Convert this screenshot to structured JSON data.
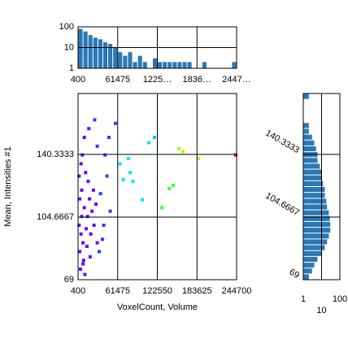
{
  "chart_data": [
    {
      "type": "histogram",
      "orientation": "vertical",
      "log_y": true,
      "color": "#2b78b4",
      "grid": true,
      "bins": [
        400,
        8034.375,
        15668.75,
        23303.125,
        30937.5,
        38571.875,
        46206.25,
        53840.625,
        61475,
        69109.375,
        76743.75,
        84378.125,
        92012.5,
        99646.875,
        107281.25,
        114915.625,
        122550,
        130184.375,
        137818.75,
        145453.125,
        153087.5,
        160721.875,
        168356.25,
        175990.625,
        183625,
        191259.375,
        198893.75,
        206528.125,
        214162.5,
        221796.875,
        229431.25,
        237065.625,
        244700
      ],
      "values": [
        80,
        60,
        40,
        30,
        25,
        18,
        15,
        10,
        6,
        4,
        6,
        2,
        4,
        2,
        1,
        3,
        2,
        2,
        2,
        2,
        2,
        2,
        2,
        0,
        0,
        2,
        0,
        0,
        0,
        0,
        0,
        2
      ],
      "xlim": [
        400,
        244700
      ],
      "xticks": [
        400,
        61475,
        {
          "value": 122550,
          "label": "1225…"
        },
        {
          "value": 183625,
          "label": "1836…"
        },
        {
          "value": 244700,
          "label": "2447…"
        }
      ],
      "ylim": [
        1,
        100
      ],
      "yticks": [
        1,
        10,
        100
      ]
    },
    {
      "type": "scatter",
      "xlabel": "VoxelCount, Volume",
      "ylabel": "Mean, Intensities #1",
      "grid": true,
      "x": [
        2000,
        5000,
        8000,
        3000,
        10000,
        15000,
        6000,
        12000,
        4000,
        9000,
        20000,
        18000,
        7000,
        25000,
        14000,
        11000,
        16000,
        22000,
        3000,
        13000,
        28000,
        10000,
        17000,
        5000,
        30000,
        8000,
        2000,
        19000,
        24000,
        6000,
        35000,
        40000,
        45000,
        38000,
        50000,
        42000,
        33000,
        48000,
        30000,
        26000,
        58000,
        80600,
        99400,
        70000,
        65000,
        78000,
        85000,
        109400,
        118150,
        140700,
        147000,
        129400,
        155750,
        162000,
        185800,
        243400
      ],
      "y": [
        100,
        95,
        90,
        85,
        110,
        105,
        120,
        130,
        75,
        80,
        95,
        115,
        140,
        100,
        88,
        72,
        125,
        108,
        115,
        98,
        112,
        150,
        155,
        135,
        90,
        78,
        128,
        82,
        120,
        105,
        118,
        100,
        128,
        92,
        108,
        140,
        85,
        150,
        145,
        160,
        158,
        130,
        114.5,
        126,
        135,
        138,
        125,
        147,
        150,
        120.9,
        122.7,
        110,
        143.6,
        142,
        138,
        140
      ],
      "colors": [
        "#6a00ff",
        "#6a00ff",
        "#6a00ff",
        "#6a00ff",
        "#6a00ff",
        "#6a00ff",
        "#6a00ff",
        "#6a00ff",
        "#6a00ff",
        "#6a00ff",
        "#6a00ff",
        "#6a00ff",
        "#6a00ff",
        "#6a00ff",
        "#6a00ff",
        "#6a00ff",
        "#6a00ff",
        "#6a00ff",
        "#6a00ff",
        "#6a00ff",
        "#6a00ff",
        "#6a00ff",
        "#6a00ff",
        "#6a00ff",
        "#6a00ff",
        "#6a00ff",
        "#6a00ff",
        "#6a00ff",
        "#6a00ff",
        "#6a00ff",
        "#2a3cff",
        "#2a3cff",
        "#2a3cff",
        "#2a3cff",
        "#2a3cff",
        "#2a3cff",
        "#2a3cff",
        "#2a3cff",
        "#2a3cff",
        "#2a3cff",
        "#2a3cff",
        "#00e8ff",
        "#00e8ff",
        "#00e8ff",
        "#00e8ff",
        "#00e8ff",
        "#00e8ff",
        "#00e8ff",
        "#00d0c0",
        "#40ff40",
        "#40ff40",
        "#40ff40",
        "#a0ff00",
        "#a0ff00",
        "#ffe000",
        "#ff0000"
      ],
      "xlim": [
        400,
        244700
      ],
      "xticks": [
        400,
        61475,
        122550,
        183625,
        244700
      ],
      "ylim": [
        69,
        175
      ],
      "yticks": [
        69,
        104.6667,
        140.3333
      ]
    },
    {
      "type": "histogram",
      "orientation": "horizontal",
      "log_x": true,
      "color": "#2b78b4",
      "grid": true,
      "bins": [
        69,
        72.3125,
        75.625,
        78.9375,
        82.25,
        85.5625,
        88.875,
        92.1875,
        95.5,
        98.8125,
        102.125,
        105.4375,
        108.75,
        112.0625,
        115.375,
        118.6875,
        122,
        125.3125,
        128.625,
        131.9375,
        135.25,
        138.5625,
        141.875,
        145.1875,
        148.5,
        151.8125,
        155.125,
        158.4375,
        161.75,
        165.0625,
        168.375,
        171.6875,
        175
      ],
      "values": [
        2,
        3,
        4,
        6,
        10,
        15,
        20,
        25,
        30,
        30,
        28,
        25,
        20,
        18,
        15,
        15,
        12,
        10,
        10,
        8,
        6,
        6,
        5,
        4,
        3,
        2,
        2,
        0,
        0,
        0,
        0,
        2
      ],
      "xlim": [
        1,
        100
      ],
      "xticks": [
        1,
        10,
        100
      ],
      "ylim": [
        69,
        175
      ],
      "yticks": [
        69,
        104.6667,
        140.3333
      ]
    }
  ]
}
